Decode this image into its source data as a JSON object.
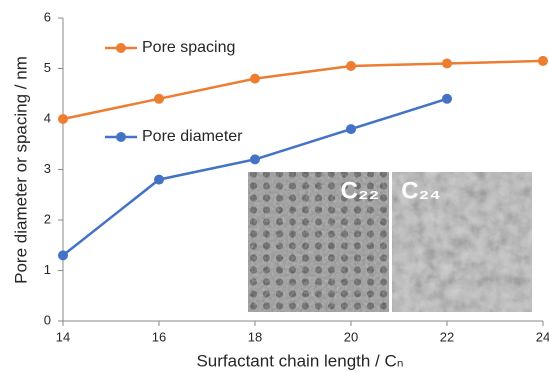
{
  "chart_data": {
    "type": "line",
    "x": [
      14,
      16,
      18,
      20,
      22,
      24
    ],
    "series": [
      {
        "name": "Pore spacing",
        "color": "#ED7D31",
        "values": [
          4.0,
          4.4,
          4.8,
          5.05,
          5.1,
          5.15
        ]
      },
      {
        "name": "Pore diameter",
        "color": "#4472C4",
        "values": [
          1.3,
          2.8,
          3.2,
          3.8,
          4.4,
          null
        ]
      }
    ],
    "xlim": [
      14,
      24
    ],
    "xticks": [
      14,
      16,
      18,
      20,
      22,
      24
    ],
    "ylim": [
      0,
      6
    ],
    "yticks": [
      0,
      1,
      2,
      3,
      4,
      5,
      6
    ],
    "x_label": "Surfactant chain length / Cₙ",
    "y_label": "Pore diameter or spacing / nm",
    "grid": false,
    "annotations": [
      "C₂₂",
      "C₂₄"
    ]
  }
}
